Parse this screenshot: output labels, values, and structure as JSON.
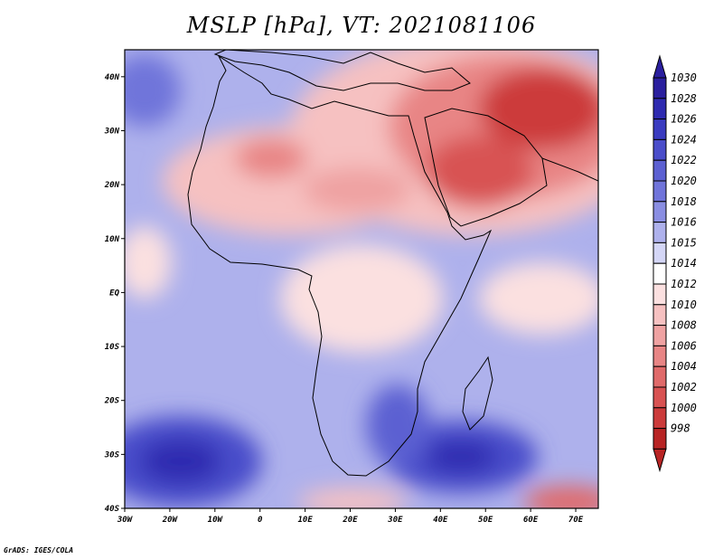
{
  "title": "MSLP [hPa], VT: 2021081106",
  "credit": "GrADS: IGES/COLA",
  "map": {
    "lon_range": [
      -30,
      75
    ],
    "lat_range": [
      -40,
      45
    ],
    "x_ticks": [
      {
        "lon": -30,
        "label": "30W"
      },
      {
        "lon": -20,
        "label": "20W"
      },
      {
        "lon": -10,
        "label": "10W"
      },
      {
        "lon": 0,
        "label": "0"
      },
      {
        "lon": 10,
        "label": "10E"
      },
      {
        "lon": 20,
        "label": "20E"
      },
      {
        "lon": 30,
        "label": "30E"
      },
      {
        "lon": 40,
        "label": "40E"
      },
      {
        "lon": 50,
        "label": "50E"
      },
      {
        "lon": 60,
        "label": "60E"
      },
      {
        "lon": 70,
        "label": "70E"
      }
    ],
    "y_ticks": [
      {
        "lat": 40,
        "label": "40N"
      },
      {
        "lat": 30,
        "label": "30N"
      },
      {
        "lat": 20,
        "label": "20N"
      },
      {
        "lat": 10,
        "label": "10N"
      },
      {
        "lat": 0,
        "label": "EQ"
      },
      {
        "lat": -10,
        "label": "10S"
      },
      {
        "lat": -20,
        "label": "20S"
      },
      {
        "lat": -30,
        "label": "30S"
      },
      {
        "lat": -40,
        "label": "40S"
      }
    ]
  },
  "colorbar": {
    "levels": [
      {
        "label": "1030",
        "color": "#2a1f9e"
      },
      {
        "label": "1028",
        "color": "#2e2ab0"
      },
      {
        "label": "1026",
        "color": "#3a3bc0"
      },
      {
        "label": "1024",
        "color": "#4a4dca"
      },
      {
        "label": "1022",
        "color": "#5c60d2"
      },
      {
        "label": "1020",
        "color": "#7074da"
      },
      {
        "label": "1018",
        "color": "#8a8ee2"
      },
      {
        "label": "1016",
        "color": "#aeb1ec"
      },
      {
        "label": "1015",
        "color": "#d4d6f6"
      },
      {
        "label": "1014",
        "color": "#ffffff"
      },
      {
        "label": "1012",
        "color": "#fbe0e0"
      },
      {
        "label": "1010",
        "color": "#f6c1c1"
      },
      {
        "label": "1008",
        "color": "#efa2a2"
      },
      {
        "label": "1006",
        "color": "#e88585"
      },
      {
        "label": "1004",
        "color": "#e06a6a"
      },
      {
        "label": "1002",
        "color": "#d85252"
      },
      {
        "label": "1000",
        "color": "#cc3b3b"
      },
      {
        "label": "998",
        "color": "#b82424"
      }
    ]
  }
}
